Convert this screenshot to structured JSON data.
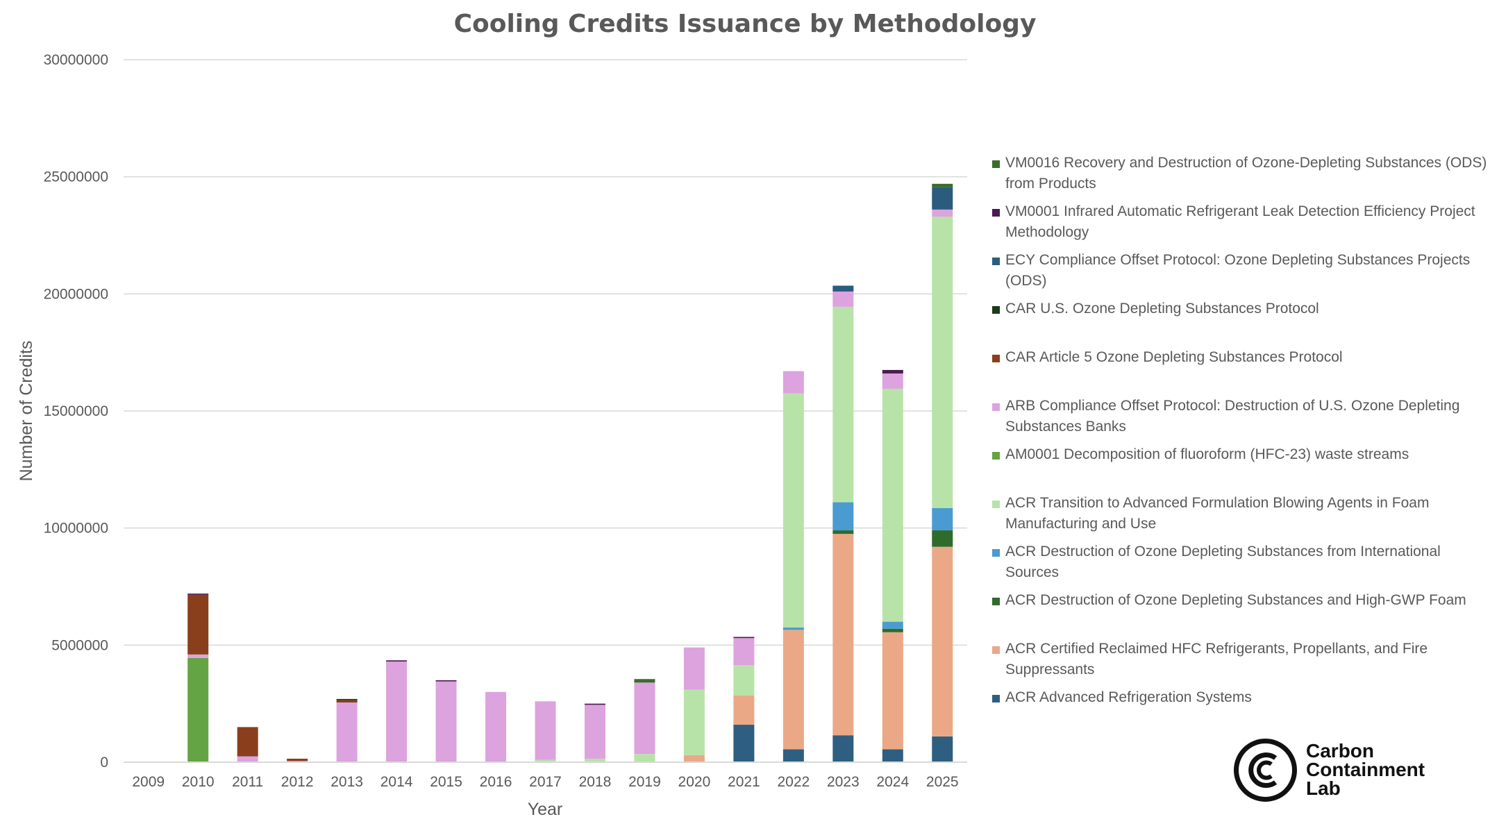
{
  "chart_data": {
    "type": "bar",
    "stacked": true,
    "title": "Cooling Credits Issuance by Methodology",
    "xlabel": "Year",
    "ylabel": "Number of Credits",
    "ylim": [
      0,
      30000000
    ],
    "yticks": [
      0,
      5000000,
      10000000,
      15000000,
      20000000,
      25000000,
      30000000
    ],
    "ytick_labels": [
      "0",
      "5000000",
      "10000000",
      "15000000",
      "20000000",
      "25000000",
      "30000000"
    ],
    "grid": true,
    "legend_position": "right",
    "categories": [
      "2009",
      "2010",
      "2011",
      "2012",
      "2013",
      "2014",
      "2015",
      "2016",
      "2017",
      "2018",
      "2019",
      "2020",
      "2021",
      "2022",
      "2023",
      "2024",
      "2025"
    ],
    "series": [
      {
        "name": "ACR Advanced Refrigeration Systems",
        "color": "#2E5F80",
        "values": [
          0,
          0,
          0,
          0,
          0,
          0,
          0,
          0,
          0,
          0,
          0,
          0,
          1600000,
          550000,
          1150000,
          550000,
          1100000
        ]
      },
      {
        "name": "ACR Certified Reclaimed HFC Refrigerants, Propellants, and Fire Suppressants",
        "color": "#EBA887",
        "values": [
          0,
          0,
          0,
          0,
          0,
          0,
          0,
          0,
          0,
          0,
          0,
          300000,
          1250000,
          5100000,
          8600000,
          5000000,
          8100000
        ]
      },
      {
        "name": "ACR Destruction of Ozone Depleting Substances and High-GWP Foam",
        "color": "#2F6B2A",
        "values": [
          0,
          0,
          0,
          0,
          0,
          0,
          0,
          0,
          0,
          0,
          0,
          0,
          0,
          0,
          150000,
          150000,
          700000
        ]
      },
      {
        "name": "ACR Destruction of Ozone Depleting Substances from International Sources",
        "color": "#4A9BD1",
        "values": [
          0,
          0,
          0,
          0,
          0,
          0,
          0,
          0,
          0,
          0,
          0,
          0,
          0,
          100000,
          1200000,
          300000,
          950000
        ]
      },
      {
        "name": "ACR Transition to Advanced Formulation Blowing Agents in Foam Manufacturing and Use",
        "color": "#B8E3A8",
        "values": [
          0,
          0,
          0,
          0,
          0,
          0,
          0,
          0,
          100000,
          150000,
          350000,
          2800000,
          1300000,
          10000000,
          8350000,
          9950000,
          12450000
        ]
      },
      {
        "name": "AM0001 Decomposition of fluoroform (HFC-23) waste streams",
        "color": "#64A444",
        "values": [
          0,
          4450000,
          0,
          0,
          0,
          0,
          0,
          0,
          0,
          0,
          0,
          0,
          0,
          0,
          0,
          0,
          0
        ]
      },
      {
        "name": "ARB Compliance Offset Protocol: Destruction of U.S. Ozone Depleting Substances Banks",
        "color": "#DCA3DE",
        "values": [
          0,
          150000,
          250000,
          50000,
          2550000,
          4300000,
          3450000,
          3000000,
          2500000,
          2300000,
          3050000,
          1800000,
          1150000,
          950000,
          650000,
          650000,
          300000
        ]
      },
      {
        "name": "CAR Article 5 Ozone Depleting Substances Protocol",
        "color": "#8A3F1C",
        "values": [
          0,
          2550000,
          1250000,
          100000,
          100000,
          0,
          0,
          0,
          0,
          0,
          0,
          0,
          0,
          0,
          0,
          0,
          0
        ]
      },
      {
        "name": "CAR U.S. Ozone Depleting Substances Protocol",
        "color": "#1C3A18",
        "values": [
          0,
          0,
          0,
          0,
          50000,
          0,
          0,
          0,
          0,
          0,
          0,
          0,
          0,
          0,
          0,
          0,
          0
        ]
      },
      {
        "name": "ECY Compliance Offset Protocol: Ozone Depleting Substances Projects (ODS)",
        "color": "#2B5C7E",
        "values": [
          0,
          0,
          0,
          0,
          0,
          0,
          0,
          0,
          0,
          0,
          0,
          0,
          0,
          0,
          250000,
          0,
          950000
        ]
      },
      {
        "name": "VM0001 Infrared Automatic Refrigerant Leak Detection Efficiency Project Methodology",
        "color": "#4A1C4E",
        "values": [
          0,
          50000,
          0,
          0,
          0,
          50000,
          50000,
          0,
          0,
          50000,
          0,
          0,
          50000,
          0,
          0,
          150000,
          0
        ]
      },
      {
        "name": "VM0016 Recovery and Destruction of Ozone-Depleting Substances (ODS) from Products",
        "color": "#3C6B2F",
        "values": [
          0,
          0,
          0,
          0,
          0,
          0,
          0,
          0,
          0,
          0,
          150000,
          0,
          0,
          0,
          0,
          0,
          150000
        ]
      }
    ]
  },
  "logo": {
    "line1": "Carbon",
    "line2": "Containment",
    "line3": "Lab"
  }
}
